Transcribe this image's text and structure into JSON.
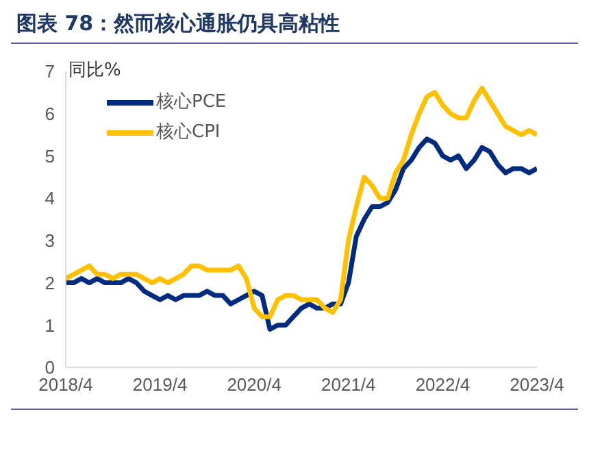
{
  "chart_data": {
    "type": "line",
    "title": "图表 78：然而核心通胀仍具高粘性",
    "ylabel": "同比%",
    "x": [
      "2018-04",
      "2018-05",
      "2018-06",
      "2018-07",
      "2018-08",
      "2018-09",
      "2018-10",
      "2018-11",
      "2018-12",
      "2019-01",
      "2019-02",
      "2019-03",
      "2019-04",
      "2019-05",
      "2019-06",
      "2019-07",
      "2019-08",
      "2019-09",
      "2019-10",
      "2019-11",
      "2019-12",
      "2020-01",
      "2020-02",
      "2020-03",
      "2020-04",
      "2020-05",
      "2020-06",
      "2020-07",
      "2020-08",
      "2020-09",
      "2020-10",
      "2020-11",
      "2020-12",
      "2021-01",
      "2021-02",
      "2021-03",
      "2021-04",
      "2021-05",
      "2021-06",
      "2021-07",
      "2021-08",
      "2021-09",
      "2021-10",
      "2021-11",
      "2021-12",
      "2022-01",
      "2022-02",
      "2022-03",
      "2022-04",
      "2022-05",
      "2022-06",
      "2022-07",
      "2022-08",
      "2022-09",
      "2022-10",
      "2022-11",
      "2022-12",
      "2023-01",
      "2023-02",
      "2023-03",
      "2023-04"
    ],
    "series": [
      {
        "name": "核心PCE",
        "color": "#002b7f",
        "values": [
          2.0,
          2.0,
          2.1,
          2.0,
          2.1,
          2.0,
          2.0,
          2.0,
          2.1,
          2.0,
          1.8,
          1.7,
          1.6,
          1.7,
          1.6,
          1.7,
          1.7,
          1.7,
          1.8,
          1.7,
          1.7,
          1.5,
          1.6,
          1.7,
          1.8,
          1.7,
          0.9,
          1.0,
          1.0,
          1.2,
          1.4,
          1.5,
          1.4,
          1.4,
          1.5,
          1.5,
          2.0,
          3.1,
          3.5,
          3.8,
          3.8,
          3.9,
          4.2,
          4.7,
          4.9,
          5.2,
          5.4,
          5.3,
          5.0,
          4.9,
          5.0,
          4.7,
          4.9,
          5.2,
          5.1,
          4.8,
          4.6,
          4.7,
          4.7,
          4.6,
          4.7
        ]
      },
      {
        "name": "核心CPI",
        "color": "#ffc000",
        "values": [
          2.1,
          2.2,
          2.3,
          2.4,
          2.2,
          2.2,
          2.1,
          2.2,
          2.2,
          2.2,
          2.1,
          2.0,
          2.1,
          2.0,
          2.1,
          2.2,
          2.4,
          2.4,
          2.3,
          2.3,
          2.3,
          2.3,
          2.4,
          2.1,
          1.4,
          1.2,
          1.2,
          1.6,
          1.7,
          1.7,
          1.6,
          1.6,
          1.6,
          1.4,
          1.3,
          1.6,
          3.0,
          3.8,
          4.5,
          4.3,
          4.0,
          4.0,
          4.6,
          4.9,
          5.5,
          6.0,
          6.4,
          6.5,
          6.2,
          6.0,
          5.9,
          5.9,
          6.3,
          6.6,
          6.3,
          6.0,
          5.7,
          5.6,
          5.5,
          5.6,
          5.5
        ]
      }
    ],
    "xlim": [
      "2018-04",
      "2023-04"
    ],
    "xticks": [
      {
        "value": "2018-04",
        "label": "2018/4"
      },
      {
        "value": "2019-04",
        "label": "2019/4"
      },
      {
        "value": "2020-04",
        "label": "2020/4"
      },
      {
        "value": "2021-04",
        "label": "2021/4"
      },
      {
        "value": "2022-04",
        "label": "2022/4"
      },
      {
        "value": "2023-04",
        "label": "2023/4"
      }
    ],
    "ylim": [
      0,
      7
    ],
    "yticks": [
      0,
      1,
      2,
      3,
      4,
      5,
      6,
      7
    ],
    "grid": false,
    "legend": "top left",
    "marker": "none",
    "line_style": "solid"
  }
}
